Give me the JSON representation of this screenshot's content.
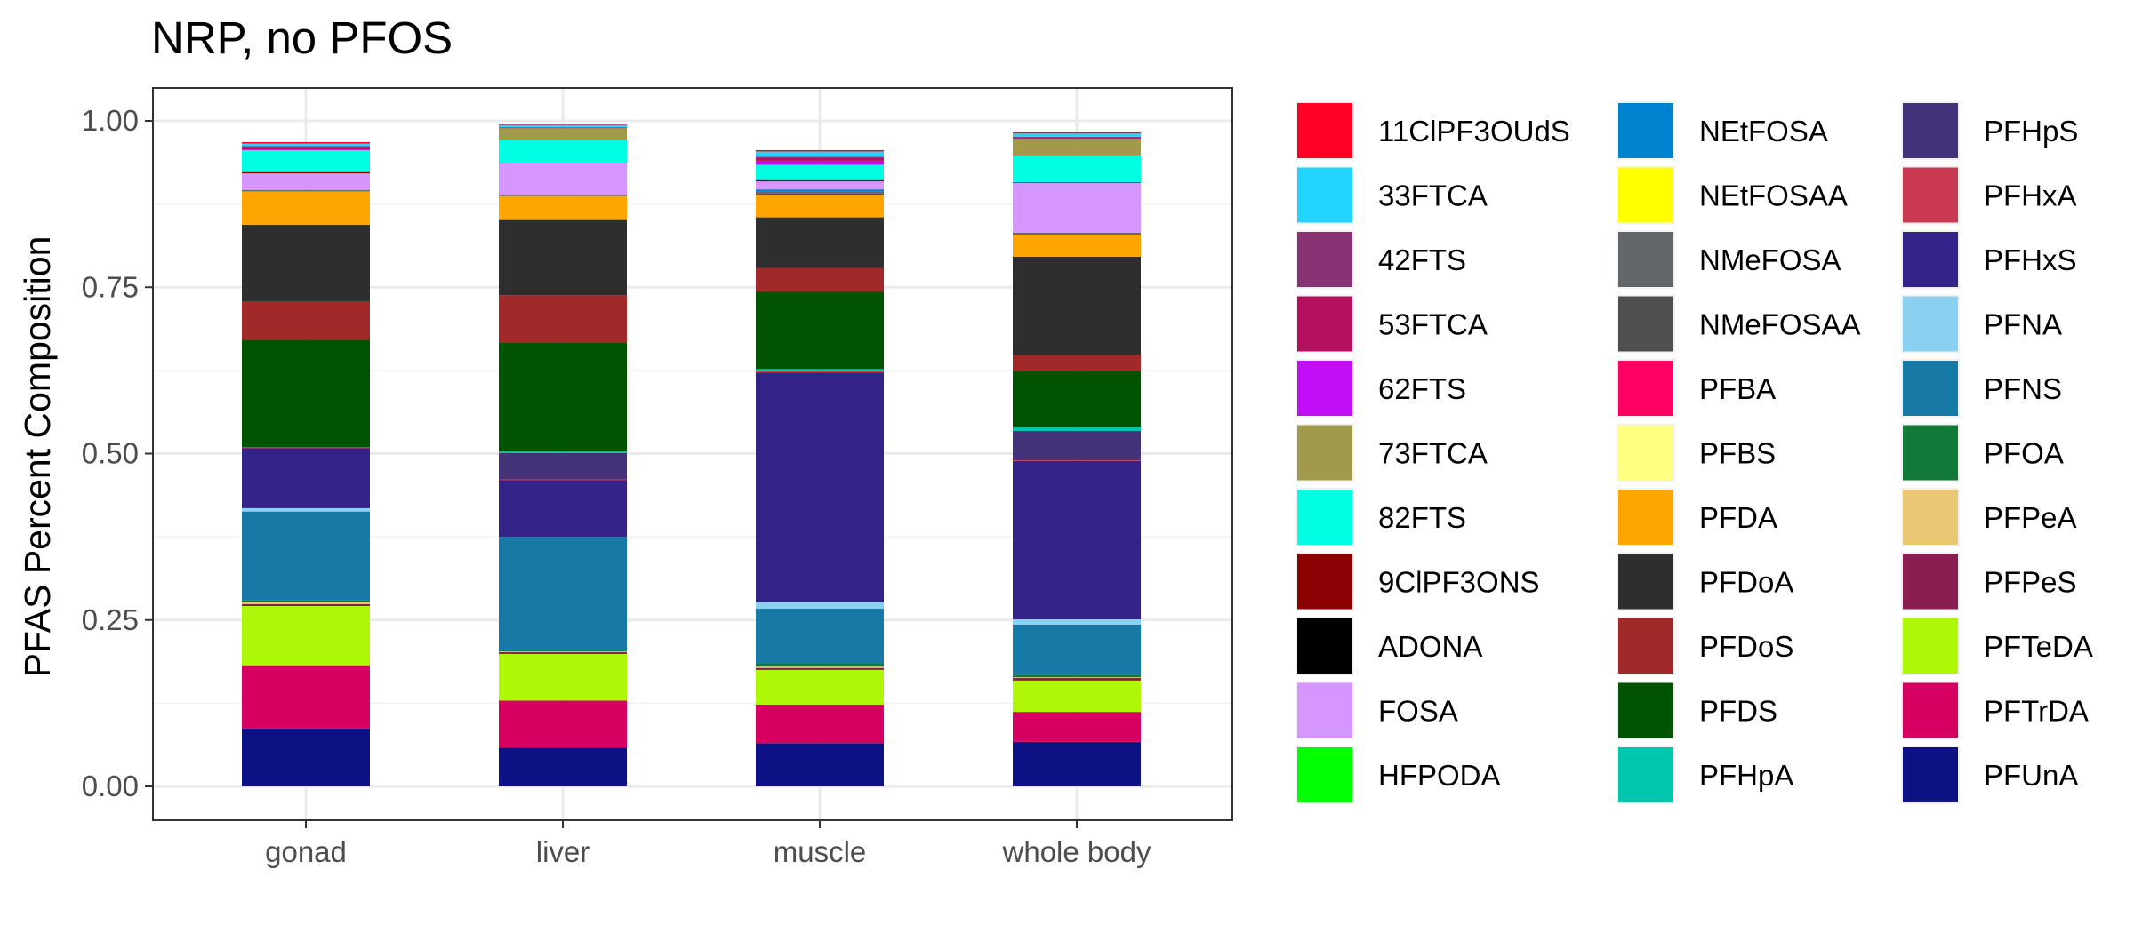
{
  "chart_data": {
    "type": "bar",
    "stacked": true,
    "title": "NRP, no PFOS",
    "xlabel": "",
    "ylabel": "PFAS Percent Composition",
    "ylim": [
      0,
      1.0
    ],
    "yticks": [
      "0.00",
      "0.25",
      "0.50",
      "0.75",
      "1.00"
    ],
    "ytick_values": [
      0,
      0.25,
      0.5,
      0.75,
      1.0
    ],
    "categories": [
      "gonad",
      "liver",
      "muscle",
      "whole body"
    ],
    "grid": true,
    "legend_position": "right",
    "legend_columns": 3,
    "series": [
      {
        "name": "11ClPF3OUdS",
        "color": "#FF0026",
        "values": [
          0.002,
          0.001,
          0.002,
          0.002
        ]
      },
      {
        "name": "33FTCA",
        "color": "#22D5FF",
        "values": [
          0.004,
          0.004,
          0.008,
          0.005
        ]
      },
      {
        "name": "42FTS",
        "color": "#8A3373",
        "values": [
          0.002,
          0.0,
          0.002,
          0.001
        ]
      },
      {
        "name": "53FTCA",
        "color": "#B5105E",
        "values": [
          0.003,
          0.001,
          0.004,
          0.001
        ]
      },
      {
        "name": "62FTS",
        "color": "#C20EF6",
        "values": [
          0.001,
          0.0,
          0.006,
          0.001
        ]
      },
      {
        "name": "73FTCA",
        "color": "#A29A4B",
        "values": [
          0.0,
          0.018,
          0.0,
          0.025
        ]
      },
      {
        "name": "82FTS",
        "color": "#00FFE2",
        "values": [
          0.033,
          0.034,
          0.023,
          0.04
        ]
      },
      {
        "name": "9ClPF3ONS",
        "color": "#8B0000",
        "values": [
          0.002,
          0.001,
          0.002,
          0.001
        ]
      },
      {
        "name": "ADONA",
        "color": "#000000",
        "values": [
          0.0,
          0.0,
          0.0,
          0.0
        ]
      },
      {
        "name": "FOSA",
        "color": "#D596FF",
        "values": [
          0.025,
          0.047,
          0.012,
          0.075
        ]
      },
      {
        "name": "HFPODA",
        "color": "#00FF00",
        "values": [
          0.0,
          0.0,
          0.0,
          0.0
        ]
      },
      {
        "name": "NEtFOSA",
        "color": "#0082CE",
        "values": [
          0.0,
          0.0,
          0.003,
          0.0
        ]
      },
      {
        "name": "NEtFOSAA",
        "color": "#FFFF00",
        "values": [
          0.0,
          0.0,
          0.0,
          0.0
        ]
      },
      {
        "name": "NMeFOSA",
        "color": "#636769",
        "values": [
          0.002,
          0.002,
          0.003,
          0.003
        ]
      },
      {
        "name": "NMeFOSAA",
        "color": "#4F4F4F",
        "values": [
          0.0,
          0.0,
          0.002,
          0.0
        ]
      },
      {
        "name": "PFBA",
        "color": "#FF0063",
        "values": [
          0.0,
          0.0,
          0.0,
          0.0
        ]
      },
      {
        "name": "PFBS",
        "color": "#FFFF80",
        "values": [
          0.0,
          0.0,
          0.0,
          0.0
        ]
      },
      {
        "name": "PFDA",
        "color": "#FFA500",
        "values": [
          0.05,
          0.036,
          0.034,
          0.033
        ]
      },
      {
        "name": "PFDoA",
        "color": "#2E2E2E",
        "values": [
          0.115,
          0.113,
          0.076,
          0.148
        ]
      },
      {
        "name": "PFDoS",
        "color": "#A2292A",
        "values": [
          0.058,
          0.071,
          0.036,
          0.024
        ]
      },
      {
        "name": "PFDS",
        "color": "#005300",
        "values": [
          0.161,
          0.164,
          0.116,
          0.084
        ]
      },
      {
        "name": "PFHpA",
        "color": "#00C6AD",
        "values": [
          0.0,
          0.002,
          0.003,
          0.006
        ]
      },
      {
        "name": "PFHpS",
        "color": "#443278",
        "values": [
          0.0,
          0.04,
          0.0,
          0.044
        ]
      },
      {
        "name": "PFHxA",
        "color": "#C93A52",
        "values": [
          0.002,
          0.001,
          0.002,
          0.001
        ]
      },
      {
        "name": "PFHxS",
        "color": "#342387",
        "values": [
          0.09,
          0.085,
          0.345,
          0.238
        ]
      },
      {
        "name": "PFNA",
        "color": "#8AD0F0",
        "values": [
          0.005,
          0.0,
          0.01,
          0.008
        ]
      },
      {
        "name": "PFNS",
        "color": "#1779A6",
        "values": [
          0.133,
          0.17,
          0.082,
          0.076
        ]
      },
      {
        "name": "PFOA",
        "color": "#127A38",
        "values": [
          0.003,
          0.002,
          0.005,
          0.003
        ]
      },
      {
        "name": "PFPeA",
        "color": "#E9C774",
        "values": [
          0.003,
          0.001,
          0.002,
          0.001
        ]
      },
      {
        "name": "PFPeS",
        "color": "#8A1E53",
        "values": [
          0.003,
          0.003,
          0.003,
          0.004
        ]
      },
      {
        "name": "PFTeDA",
        "color": "#AEF707",
        "values": [
          0.089,
          0.07,
          0.052,
          0.047
        ]
      },
      {
        "name": "PFTrDA",
        "color": "#D5005F",
        "values": [
          0.095,
          0.071,
          0.058,
          0.045
        ]
      },
      {
        "name": "PFUnA",
        "color": "#0C1183",
        "values": [
          0.087,
          0.058,
          0.065,
          0.067
        ]
      }
    ]
  }
}
